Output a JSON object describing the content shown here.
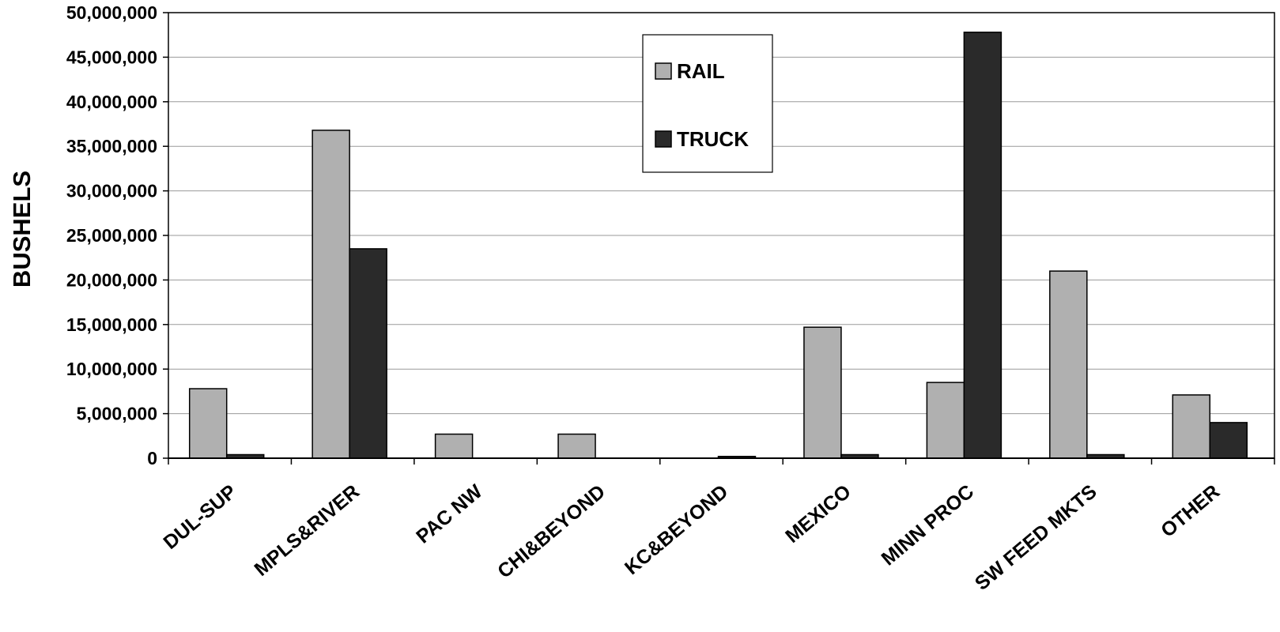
{
  "chart_data": {
    "type": "bar",
    "ylabel": "BUSHELS",
    "xlabel": "",
    "title": "",
    "ylim": [
      0,
      50000000
    ],
    "yticks": [
      "0",
      "5,000,000",
      "10,000,000",
      "15,000,000",
      "20,000,000",
      "25,000,000",
      "30,000,000",
      "35,000,000",
      "40,000,000",
      "45,000,000",
      "50,000,000"
    ],
    "categories": [
      "DUL-SUP",
      "MPLS&RIVER",
      "PAC NW",
      "CHI&BEYOND",
      "KC&BEYOND",
      "MEXICO",
      "MINN PROC",
      "SW FEED MKTS",
      "OTHER"
    ],
    "series": [
      {
        "name": "RAIL",
        "values": [
          7800000,
          36800000,
          2700000,
          2700000,
          0,
          14700000,
          8500000,
          21000000,
          7100000
        ]
      },
      {
        "name": "TRUCK",
        "values": [
          400000,
          23500000,
          0,
          0,
          200000,
          400000,
          47800000,
          400000,
          4000000
        ]
      }
    ],
    "grid": true,
    "legend_position": "top-center",
    "colors": {
      "RAIL": "#b0b0b0",
      "TRUCK": "#2a2a2a",
      "grid": "#9a9a9a",
      "axis": "#000000"
    }
  }
}
